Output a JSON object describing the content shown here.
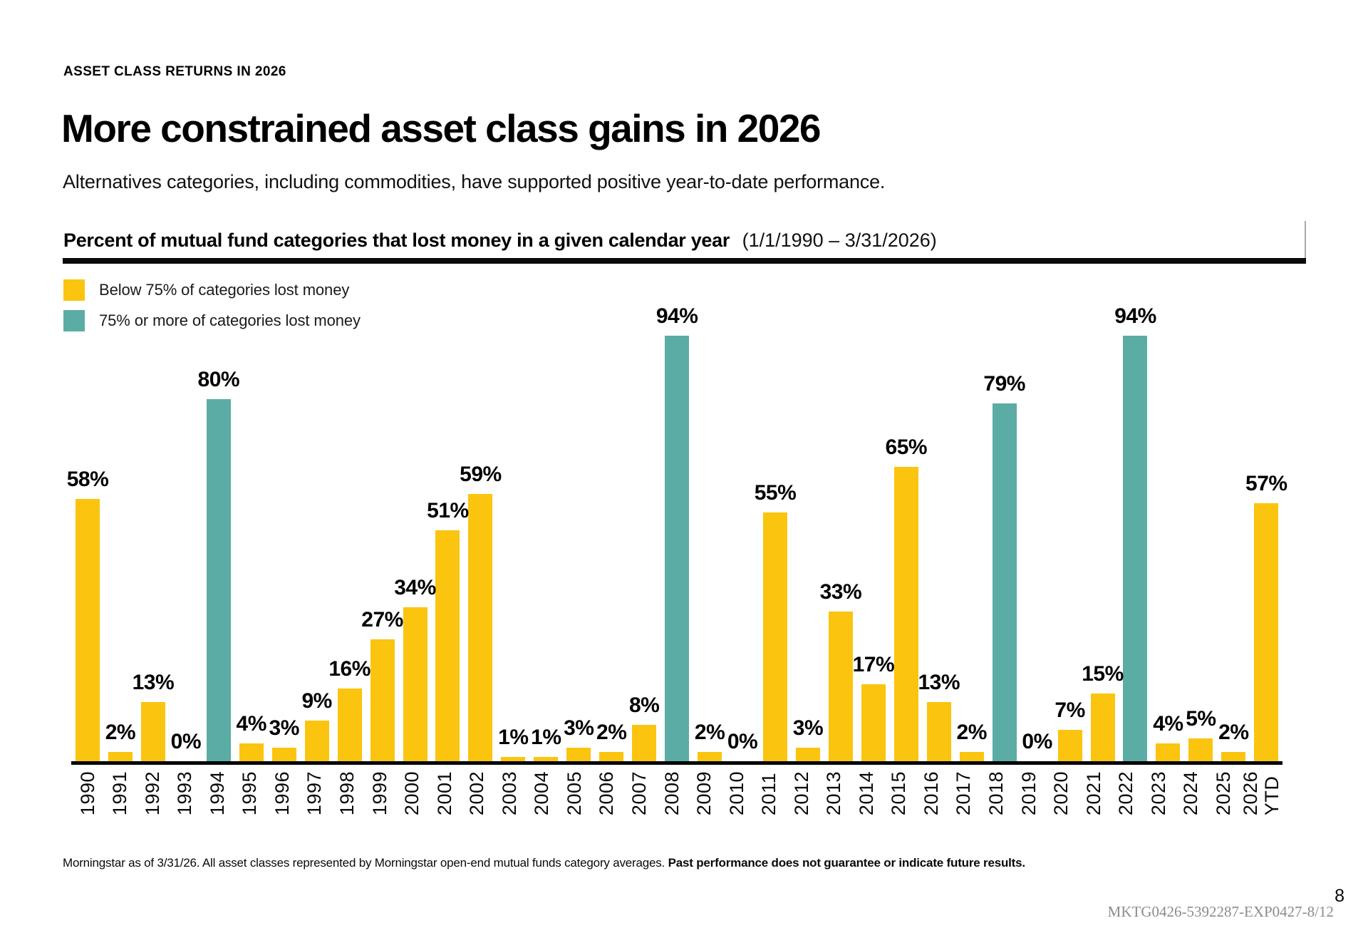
{
  "page": {
    "eyebrow": "ASSET CLASS RETURNS IN 2026",
    "title": "More constrained asset class gains in 2026",
    "subtitle": "Alternatives categories, including commodities, have supported positive year-to-date performance.",
    "page_number": "8",
    "doc_code": "MKTG0426-5392287-EXP0427-8/12"
  },
  "chart_header": {
    "title_bold": "Percent of mutual fund categories that lost money in a given calendar year",
    "title_range": "(1/1/1990 – 3/31/2026)"
  },
  "legend": [
    {
      "label": "Below 75% of categories lost money",
      "color": "#FBC40F"
    },
    {
      "label": "75% or more of categories lost money",
      "color": "#5BACA4"
    }
  ],
  "footnote": {
    "regular": "Morningstar as of 3/31/26. All asset classes represented by Morningstar open-end mutual funds category averages. ",
    "bold": "Past performance does not guarantee or indicate future results."
  },
  "chart_data": {
    "type": "bar",
    "title": "Percent of mutual fund categories that lost money in a given calendar year",
    "date_range": "(1/1/1990 – 3/31/2026)",
    "ylim": [
      0,
      100
    ],
    "unit": "%",
    "grid": false,
    "legend_position": "top-left",
    "colors": {
      "below": "#FBC40F",
      "above": "#5BACA4"
    },
    "color_rule": "group 'above' (teal) when 75% or more of categories lost money in that year",
    "categories": [
      "1990",
      "1991",
      "1992",
      "1993",
      "1994",
      "1995",
      "1996",
      "1997",
      "1998",
      "1999",
      "2000",
      "2001",
      "2002",
      "2003",
      "2004",
      "2005",
      "2006",
      "2007",
      "2008",
      "2009",
      "2010",
      "2011",
      "2012",
      "2013",
      "2014",
      "2015",
      "2016",
      "2017",
      "2018",
      "2019",
      "2020",
      "2021",
      "2022",
      "2023",
      "2024",
      "2025",
      "2026 YTD"
    ],
    "values": [
      58,
      2,
      13,
      0,
      80,
      4,
      3,
      9,
      16,
      27,
      34,
      51,
      59,
      1,
      1,
      3,
      2,
      8,
      94,
      2,
      0,
      55,
      3,
      33,
      17,
      65,
      13,
      2,
      79,
      0,
      7,
      15,
      94,
      4,
      5,
      2,
      57
    ],
    "points": [
      {
        "year": "1990",
        "label": "1990",
        "value": 58,
        "group": "below"
      },
      {
        "year": "1991",
        "label": "1991",
        "value": 2,
        "group": "below"
      },
      {
        "year": "1992",
        "label": "1992",
        "value": 13,
        "group": "below"
      },
      {
        "year": "1993",
        "label": "1993",
        "value": 0,
        "group": "below"
      },
      {
        "year": "1994",
        "label": "1994",
        "value": 80,
        "group": "above"
      },
      {
        "year": "1995",
        "label": "1995",
        "value": 4,
        "group": "below"
      },
      {
        "year": "1996",
        "label": "1996",
        "value": 3,
        "group": "below"
      },
      {
        "year": "1997",
        "label": "1997",
        "value": 9,
        "group": "below"
      },
      {
        "year": "1998",
        "label": "1998",
        "value": 16,
        "group": "below"
      },
      {
        "year": "1999",
        "label": "1999",
        "value": 27,
        "group": "below"
      },
      {
        "year": "2000",
        "label": "2000",
        "value": 34,
        "group": "below"
      },
      {
        "year": "2001",
        "label": "2001",
        "value": 51,
        "group": "below"
      },
      {
        "year": "2002",
        "label": "2002",
        "value": 59,
        "group": "below"
      },
      {
        "year": "2003",
        "label": "2003",
        "value": 1,
        "group": "below"
      },
      {
        "year": "2004",
        "label": "2004",
        "value": 1,
        "group": "below"
      },
      {
        "year": "2005",
        "label": "2005",
        "value": 3,
        "group": "below"
      },
      {
        "year": "2006",
        "label": "2006",
        "value": 2,
        "group": "below"
      },
      {
        "year": "2007",
        "label": "2007",
        "value": 8,
        "group": "below"
      },
      {
        "year": "2008",
        "label": "2008",
        "value": 94,
        "group": "above"
      },
      {
        "year": "2009",
        "label": "2009",
        "value": 2,
        "group": "below"
      },
      {
        "year": "2010",
        "label": "2010",
        "value": 0,
        "group": "below"
      },
      {
        "year": "2011",
        "label": "2011",
        "value": 55,
        "group": "below"
      },
      {
        "year": "2012",
        "label": "2012",
        "value": 3,
        "group": "below"
      },
      {
        "year": "2013",
        "label": "2013",
        "value": 33,
        "group": "below"
      },
      {
        "year": "2014",
        "label": "2014",
        "value": 17,
        "group": "below"
      },
      {
        "year": "2015",
        "label": "2015",
        "value": 65,
        "group": "below"
      },
      {
        "year": "2016",
        "label": "2016",
        "value": 13,
        "group": "below"
      },
      {
        "year": "2017",
        "label": "2017",
        "value": 2,
        "group": "below"
      },
      {
        "year": "2018",
        "label": "2018",
        "value": 79,
        "group": "above"
      },
      {
        "year": "2019",
        "label": "2019",
        "value": 0,
        "group": "below"
      },
      {
        "year": "2020",
        "label": "2020",
        "value": 7,
        "group": "below"
      },
      {
        "year": "2021",
        "label": "2021",
        "value": 15,
        "group": "below"
      },
      {
        "year": "2022",
        "label": "2022",
        "value": 94,
        "group": "above"
      },
      {
        "year": "2023",
        "label": "2023",
        "value": 4,
        "group": "below"
      },
      {
        "year": "2024",
        "label": "2024",
        "value": 5,
        "group": "below"
      },
      {
        "year": "2025",
        "label": "2025",
        "value": 2,
        "group": "below"
      },
      {
        "year": "2026 YTD",
        "label": "2026\nYTD",
        "value": 57,
        "group": "below"
      }
    ]
  }
}
